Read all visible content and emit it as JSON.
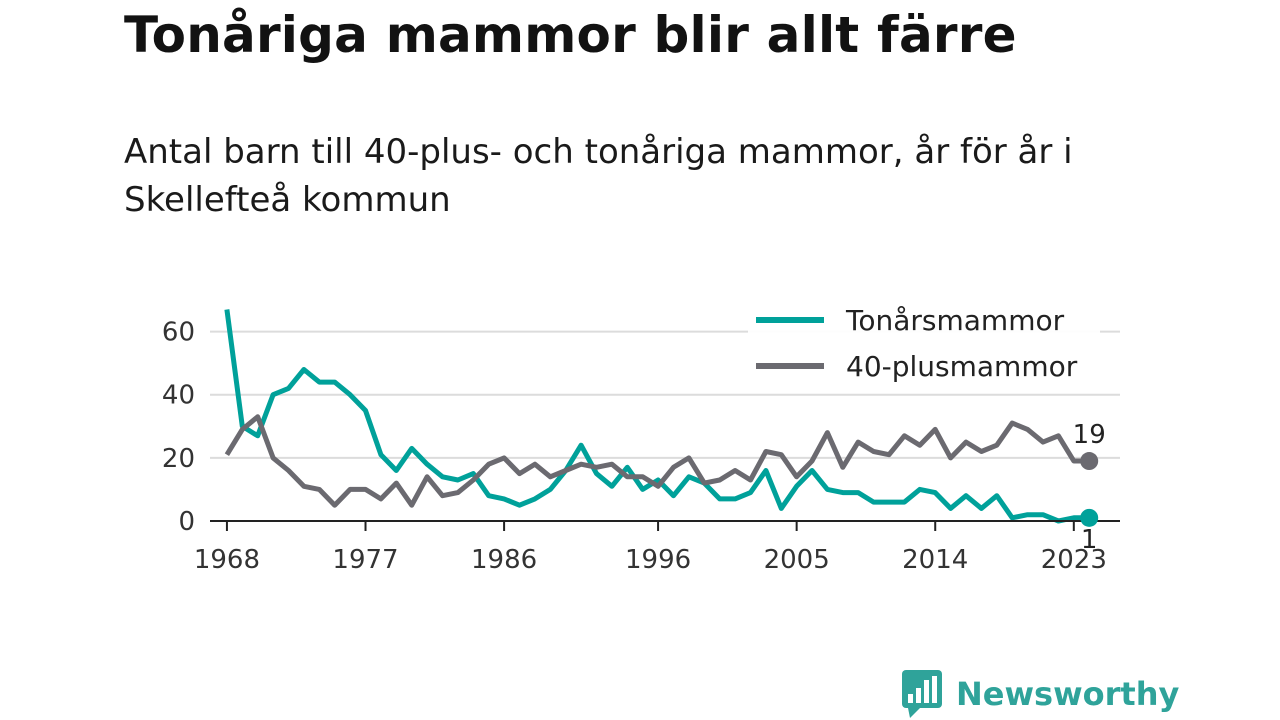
{
  "title": "Tonåriga mammor blir allt färre",
  "subtitle": "Antal barn till 40-plus- och tonåriga mammor, år för år i Skellefteå kommun",
  "brand": {
    "name": "Newsworthy",
    "icon": "newsworthy-logo-icon",
    "color": "#2fa39a"
  },
  "chart_data": {
    "type": "line",
    "x_ticks": [
      "1968",
      "1977",
      "1986",
      "1996",
      "2005",
      "2014",
      "2023"
    ],
    "y_ticks": [
      "0",
      "20",
      "40",
      "60"
    ],
    "ylim": [
      0,
      70
    ],
    "xlim": [
      1966.9,
      2026
    ],
    "grid": true,
    "legend_position": "top-right",
    "x": [
      1968,
      1969,
      1970,
      1971,
      1972,
      1973,
      1974,
      1975,
      1976,
      1977,
      1978,
      1979,
      1980,
      1981,
      1982,
      1983,
      1984,
      1985,
      1986,
      1987,
      1988,
      1989,
      1990,
      1991,
      1992,
      1993,
      1994,
      1995,
      1996,
      1997,
      1998,
      1999,
      2000,
      2001,
      2002,
      2003,
      2004,
      2005,
      2006,
      2007,
      2008,
      2009,
      2010,
      2011,
      2012,
      2013,
      2014,
      2015,
      2016,
      2017,
      2018,
      2019,
      2020,
      2021,
      2022,
      2023,
      2024
    ],
    "series": [
      {
        "name": "Tonårsmammor",
        "color": "#00a19a",
        "end_label": "1",
        "values": [
          67,
          30,
          27,
          40,
          42,
          48,
          44,
          44,
          40,
          35,
          21,
          16,
          23,
          18,
          14,
          13,
          15,
          8,
          7,
          5,
          7,
          10,
          16,
          24,
          15,
          11,
          17,
          10,
          13,
          8,
          14,
          12,
          7,
          7,
          9,
          16,
          4,
          11,
          16,
          10,
          9,
          9,
          6,
          6,
          6,
          10,
          9,
          4,
          8,
          4,
          8,
          1,
          2,
          2,
          0,
          1,
          1
        ]
      },
      {
        "name": "40-plusmammor",
        "color": "#6b6a70",
        "end_label": "19",
        "values": [
          21,
          29,
          33,
          20,
          16,
          11,
          10,
          5,
          10,
          10,
          7,
          12,
          5,
          14,
          8,
          9,
          13,
          18,
          20,
          15,
          18,
          14,
          16,
          18,
          17,
          18,
          14,
          14,
          11,
          17,
          20,
          12,
          13,
          16,
          13,
          22,
          21,
          14,
          19,
          28,
          17,
          25,
          22,
          21,
          27,
          24,
          29,
          20,
          25,
          22,
          24,
          31,
          29,
          25,
          27,
          19,
          19
        ]
      }
    ]
  }
}
